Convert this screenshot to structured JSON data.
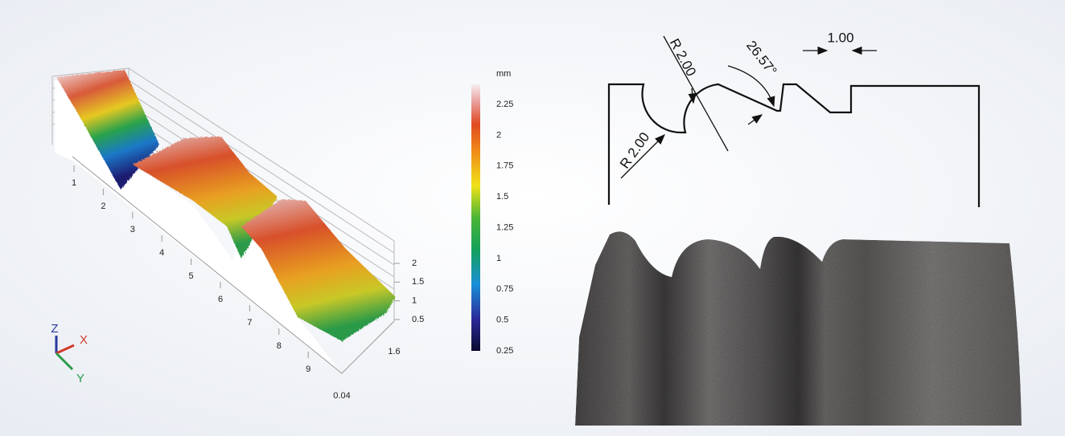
{
  "surface_plot": {
    "x_axis_labels": [
      1,
      2,
      3,
      4,
      5,
      6,
      7,
      8,
      9
    ],
    "y_axis_labels": [
      1.6,
      0.04
    ],
    "z_axis_labels": [
      2,
      1.5,
      1,
      0.5
    ],
    "axis_triad": [
      "Z",
      "X",
      "Y"
    ],
    "colorbar": {
      "unit": "mm",
      "labels": [
        2.25,
        2,
        1.75,
        1.5,
        1.25,
        1,
        0.75,
        0.5,
        0.25
      ]
    }
  },
  "drawing": {
    "dimensions": [
      "R 2.00",
      "R 2.00",
      "26.57°",
      "1.00"
    ]
  }
}
